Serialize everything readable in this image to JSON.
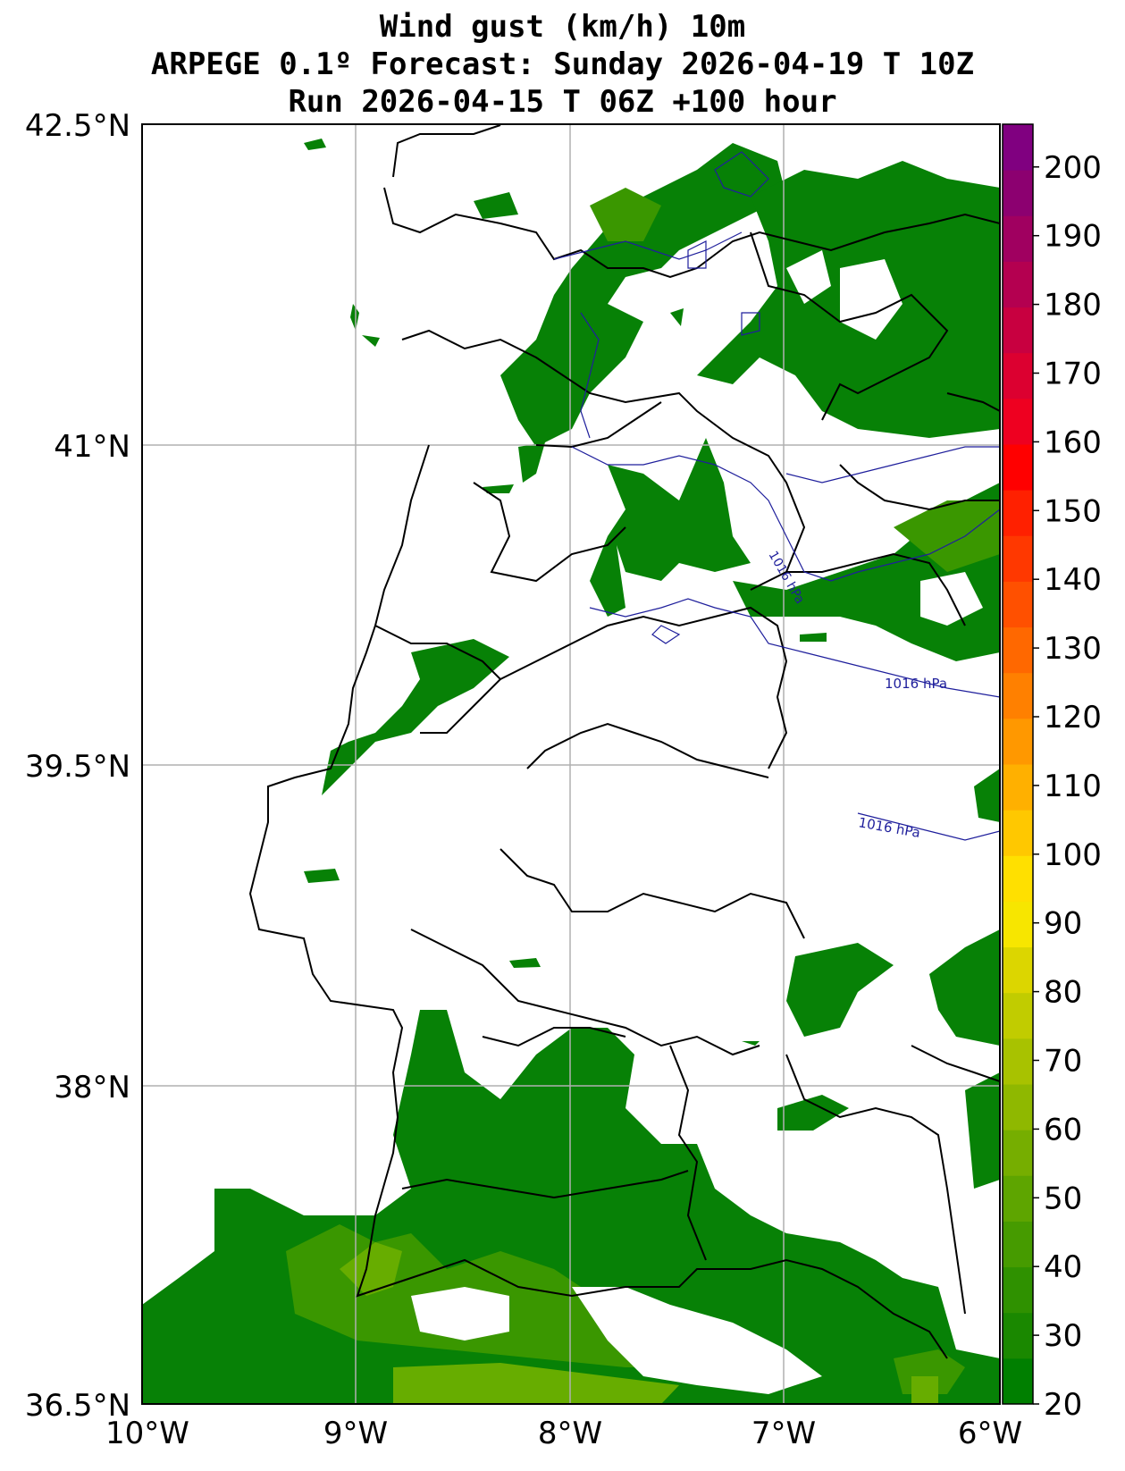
{
  "title": {
    "line1": "Wind gust (km/h) 10m",
    "line2": "ARPEGE 0.1º Forecast: Sunday 2026-04-19 T 10Z",
    "line3": "Run 2026-04-15 T 06Z +100 hour"
  },
  "map": {
    "lat_labels": [
      "42.5°N",
      "41°N",
      "39.5°N",
      "38°N",
      "36.5°N"
    ],
    "lon_labels": [
      "10°W",
      "9°W",
      "8°W",
      "7°W",
      "6°W"
    ],
    "isobar_labels": [
      "1016 hPa",
      "1016 hPa",
      "1016 hPa"
    ]
  },
  "colorbar": {
    "labels": [
      "20",
      "30",
      "40",
      "50",
      "60",
      "70",
      "80",
      "90",
      "100",
      "110",
      "120",
      "130",
      "140",
      "150",
      "160",
      "170",
      "180",
      "190",
      "200"
    ],
    "colors": [
      "#007f00",
      "#1a8800",
      "#2f9100",
      "#469b00",
      "#5ea500",
      "#76ae00",
      "#8fb800",
      "#a8c200",
      "#c1cc00",
      "#dcd600",
      "#f7e600",
      "#ffe000",
      "#ffc800",
      "#ffb000",
      "#ff9800",
      "#ff8000",
      "#ff6800",
      "#ff5000",
      "#ff3800",
      "#ff2000",
      "#ff0000",
      "#ee0020",
      "#dc0030",
      "#c80040",
      "#b40050",
      "#a00060",
      "#8c0070",
      "#800080"
    ]
  },
  "colors": {
    "wind_green": "#078106",
    "wind_mid": "#3a9700",
    "wind_light": "#67ad00",
    "isobar": "#1f1f9c",
    "border": "#000000",
    "grid": "#b0b0b0"
  }
}
